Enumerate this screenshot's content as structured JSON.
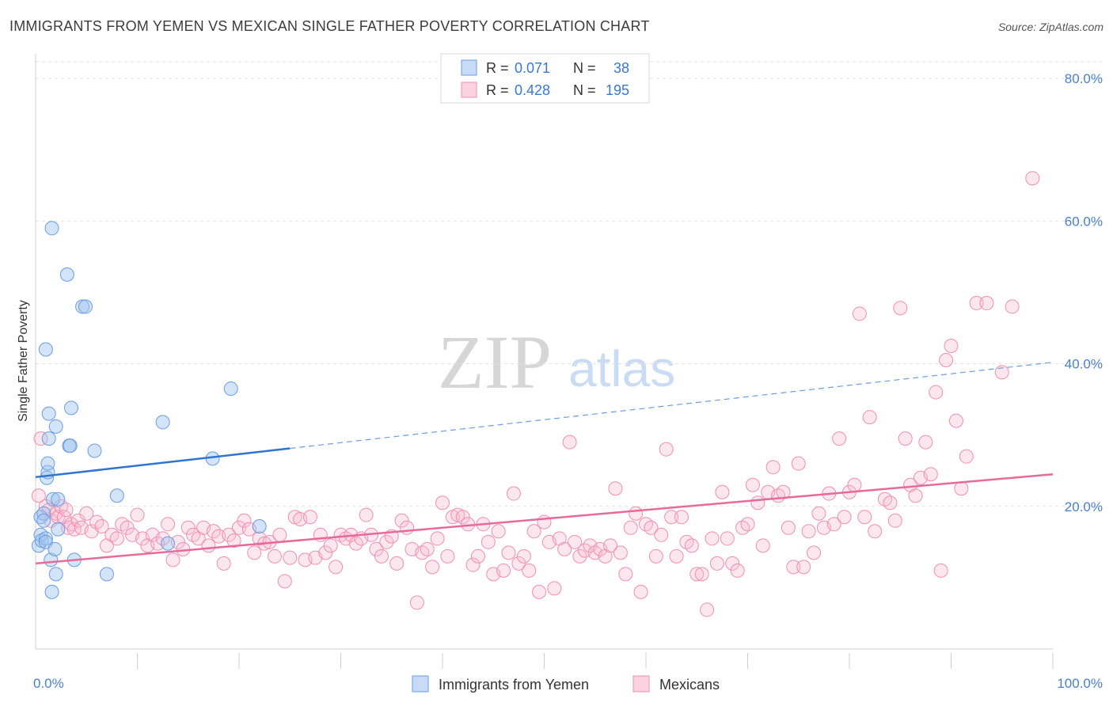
{
  "title": "IMMIGRANTS FROM YEMEN VS MEXICAN SINGLE FATHER POVERTY CORRELATION CHART",
  "source": "Source: ZipAtlas.com",
  "watermark": {
    "zip": "ZIP",
    "atlas": "atlas"
  },
  "legend": {
    "rows": [
      {
        "r_label": "R =",
        "r_value": "0.071",
        "n_label": "N =",
        "n_value": "38",
        "color": "#6b9de0"
      },
      {
        "r_label": "R =",
        "r_value": "0.428",
        "n_label": "N =",
        "n_value": "195",
        "color": "#f08fb0"
      }
    ]
  },
  "bottom_legend": [
    {
      "label": "Immigrants from Yemen",
      "color": "#6b9de0"
    },
    {
      "label": "Mexicans",
      "color": "#f08fb0"
    }
  ],
  "chart_data": {
    "type": "scatter",
    "xlabel": "",
    "ylabel": "Single Father Poverty",
    "xlim": [
      0,
      100
    ],
    "ylim": [
      0,
      83
    ],
    "x_tick_labels": [
      "0.0%",
      "100.0%"
    ],
    "y_ticks": [
      20,
      40,
      60,
      80
    ],
    "y_tick_labels": [
      "20.0%",
      "40.0%",
      "60.0%",
      "80.0%"
    ],
    "grid": "horizontal dashed",
    "series": [
      {
        "name": "Immigrants from Yemen",
        "color": "#6b9de0",
        "trend": {
          "x0": 0,
          "y0": 24.1,
          "x1": 100,
          "y1": 40.2,
          "solid_until": 25
        },
        "points": [
          [
            0.3,
            14.5
          ],
          [
            0.5,
            16.0
          ],
          [
            0.5,
            18.5
          ],
          [
            0.6,
            15.2
          ],
          [
            0.8,
            19.0
          ],
          [
            0.8,
            18.0
          ],
          [
            1.0,
            15.5
          ],
          [
            1.0,
            15.0
          ],
          [
            1.0,
            42.0
          ],
          [
            1.1,
            24.0
          ],
          [
            1.2,
            24.8
          ],
          [
            1.2,
            26.0
          ],
          [
            1.3,
            29.5
          ],
          [
            1.3,
            33.0
          ],
          [
            1.5,
            12.5
          ],
          [
            1.6,
            8.0
          ],
          [
            1.6,
            59.0
          ],
          [
            1.7,
            21.0
          ],
          [
            1.9,
            14.0
          ],
          [
            2.0,
            31.2
          ],
          [
            2.0,
            10.5
          ],
          [
            2.2,
            16.8
          ],
          [
            2.2,
            21.0
          ],
          [
            3.1,
            52.5
          ],
          [
            3.3,
            28.5
          ],
          [
            3.4,
            28.5
          ],
          [
            3.5,
            33.8
          ],
          [
            3.8,
            12.5
          ],
          [
            4.6,
            48.0
          ],
          [
            4.9,
            48.0
          ],
          [
            5.8,
            27.8
          ],
          [
            7.0,
            10.5
          ],
          [
            8.0,
            21.5
          ],
          [
            12.5,
            31.8
          ],
          [
            13.0,
            14.8
          ],
          [
            17.4,
            26.7
          ],
          [
            19.2,
            36.5
          ],
          [
            22.0,
            17.2
          ]
        ]
      },
      {
        "name": "Mexicans",
        "color": "#f08fb0",
        "trend": {
          "x0": 0,
          "y0": 12.0,
          "x1": 100,
          "y1": 24.5
        },
        "points": [
          [
            0.3,
            21.5
          ],
          [
            0.5,
            29.5
          ],
          [
            1.0,
            20.0
          ],
          [
            1.3,
            19.5
          ],
          [
            1.5,
            18.0
          ],
          [
            2.0,
            19.0
          ],
          [
            2.2,
            18.5
          ],
          [
            2.5,
            20.0
          ],
          [
            2.8,
            18.5
          ],
          [
            3.0,
            19.5
          ],
          [
            3.2,
            17.0
          ],
          [
            3.5,
            17.5
          ],
          [
            3.8,
            16.8
          ],
          [
            4.2,
            18.0
          ],
          [
            4.5,
            17.0
          ],
          [
            5.0,
            19.0
          ],
          [
            5.5,
            16.5
          ],
          [
            6.0,
            17.8
          ],
          [
            6.5,
            17.2
          ],
          [
            7.0,
            14.5
          ],
          [
            7.5,
            16.0
          ],
          [
            8.0,
            15.5
          ],
          [
            8.5,
            17.5
          ],
          [
            9.0,
            17.0
          ],
          [
            9.5,
            16.0
          ],
          [
            10.0,
            18.8
          ],
          [
            10.5,
            15.5
          ],
          [
            11.0,
            14.5
          ],
          [
            11.5,
            16.0
          ],
          [
            12.0,
            14.8
          ],
          [
            12.5,
            15.5
          ],
          [
            13.0,
            17.5
          ],
          [
            13.5,
            12.5
          ],
          [
            14.0,
            15.0
          ],
          [
            14.5,
            14.0
          ],
          [
            15.0,
            17.0
          ],
          [
            15.5,
            16.0
          ],
          [
            16.0,
            15.5
          ],
          [
            16.5,
            17.0
          ],
          [
            17.0,
            14.5
          ],
          [
            17.5,
            16.5
          ],
          [
            18.0,
            15.8
          ],
          [
            18.5,
            12.0
          ],
          [
            19.0,
            16.0
          ],
          [
            19.5,
            15.2
          ],
          [
            20.0,
            17.0
          ],
          [
            20.5,
            18.0
          ],
          [
            21.0,
            16.8
          ],
          [
            21.5,
            13.5
          ],
          [
            22.0,
            15.5
          ],
          [
            22.5,
            14.8
          ],
          [
            23.0,
            15.0
          ],
          [
            23.5,
            13.0
          ],
          [
            24.0,
            16.0
          ],
          [
            24.5,
            9.5
          ],
          [
            25.0,
            12.8
          ],
          [
            25.5,
            18.5
          ],
          [
            26.0,
            18.2
          ],
          [
            26.5,
            12.5
          ],
          [
            27.0,
            18.5
          ],
          [
            27.5,
            12.8
          ],
          [
            28.0,
            16.0
          ],
          [
            28.5,
            13.5
          ],
          [
            29.0,
            14.5
          ],
          [
            29.5,
            11.5
          ],
          [
            30.0,
            16.0
          ],
          [
            30.5,
            15.5
          ],
          [
            31.0,
            16.0
          ],
          [
            31.5,
            14.8
          ],
          [
            32.0,
            15.5
          ],
          [
            32.5,
            18.8
          ],
          [
            33.0,
            16.0
          ],
          [
            33.5,
            14.0
          ],
          [
            34.0,
            13.0
          ],
          [
            34.5,
            15.0
          ],
          [
            35.0,
            15.8
          ],
          [
            35.5,
            12.0
          ],
          [
            36.0,
            18.0
          ],
          [
            36.5,
            17.0
          ],
          [
            37.0,
            14.0
          ],
          [
            37.5,
            6.5
          ],
          [
            38.0,
            13.5
          ],
          [
            38.5,
            14.0
          ],
          [
            39.0,
            11.5
          ],
          [
            39.5,
            15.5
          ],
          [
            40.0,
            20.5
          ],
          [
            40.5,
            13.0
          ],
          [
            41.0,
            18.5
          ],
          [
            41.5,
            18.8
          ],
          [
            42.0,
            18.5
          ],
          [
            42.5,
            17.5
          ],
          [
            43.0,
            11.8
          ],
          [
            43.5,
            13.0
          ],
          [
            44.0,
            17.5
          ],
          [
            44.5,
            15.0
          ],
          [
            45.0,
            10.5
          ],
          [
            45.5,
            16.5
          ],
          [
            46.0,
            11.0
          ],
          [
            46.5,
            13.5
          ],
          [
            47.0,
            21.8
          ],
          [
            47.5,
            12.0
          ],
          [
            48.0,
            13.0
          ],
          [
            48.5,
            11.0
          ],
          [
            49.0,
            16.5
          ],
          [
            49.5,
            8.0
          ],
          [
            50.0,
            17.8
          ],
          [
            50.5,
            15.0
          ],
          [
            51.0,
            8.5
          ],
          [
            51.5,
            15.5
          ],
          [
            52.0,
            14.0
          ],
          [
            52.5,
            29.0
          ],
          [
            53.0,
            15.0
          ],
          [
            53.5,
            13.0
          ],
          [
            54.0,
            13.8
          ],
          [
            54.5,
            14.5
          ],
          [
            55.0,
            13.5
          ],
          [
            55.5,
            14.0
          ],
          [
            56.0,
            13.0
          ],
          [
            56.5,
            14.5
          ],
          [
            57.0,
            22.5
          ],
          [
            57.5,
            13.5
          ],
          [
            58.0,
            10.5
          ],
          [
            58.5,
            17.0
          ],
          [
            59.0,
            19.0
          ],
          [
            59.5,
            8.0
          ],
          [
            60.0,
            17.5
          ],
          [
            60.5,
            17.0
          ],
          [
            61.0,
            13.0
          ],
          [
            61.5,
            16.0
          ],
          [
            62.0,
            28.0
          ],
          [
            62.5,
            18.5
          ],
          [
            63.0,
            13.0
          ],
          [
            63.5,
            18.5
          ],
          [
            64.0,
            15.0
          ],
          [
            64.5,
            14.5
          ],
          [
            65.0,
            10.5
          ],
          [
            65.5,
            10.5
          ],
          [
            66.0,
            5.5
          ],
          [
            66.5,
            15.5
          ],
          [
            67.0,
            12.0
          ],
          [
            67.5,
            22.0
          ],
          [
            68.0,
            15.5
          ],
          [
            68.5,
            12.0
          ],
          [
            69.0,
            11.0
          ],
          [
            69.5,
            17.0
          ],
          [
            70.0,
            17.5
          ],
          [
            70.5,
            23.0
          ],
          [
            71.0,
            20.5
          ],
          [
            71.5,
            14.5
          ],
          [
            72.0,
            22.0
          ],
          [
            72.5,
            25.5
          ],
          [
            73.0,
            21.5
          ],
          [
            73.5,
            22.0
          ],
          [
            74.0,
            17.0
          ],
          [
            74.5,
            11.5
          ],
          [
            75.0,
            26.0
          ],
          [
            75.5,
            11.5
          ],
          [
            76.0,
            16.5
          ],
          [
            76.5,
            13.5
          ],
          [
            77.0,
            19.0
          ],
          [
            77.5,
            17.0
          ],
          [
            78.0,
            21.8
          ],
          [
            78.5,
            17.5
          ],
          [
            79.0,
            29.5
          ],
          [
            79.5,
            18.5
          ],
          [
            80.0,
            22.0
          ],
          [
            80.5,
            23.0
          ],
          [
            81.0,
            47.0
          ],
          [
            81.5,
            18.5
          ],
          [
            82.0,
            32.5
          ],
          [
            82.5,
            16.5
          ],
          [
            83.5,
            21.0
          ],
          [
            84.0,
            20.5
          ],
          [
            84.5,
            18.0
          ],
          [
            85.0,
            47.8
          ],
          [
            85.5,
            29.5
          ],
          [
            86.0,
            23.0
          ],
          [
            86.5,
            21.5
          ],
          [
            87.0,
            24.0
          ],
          [
            87.5,
            29.0
          ],
          [
            88.0,
            24.5
          ],
          [
            88.5,
            36.0
          ],
          [
            89.0,
            11.0
          ],
          [
            89.5,
            40.5
          ],
          [
            90.0,
            42.5
          ],
          [
            90.5,
            32.0
          ],
          [
            91.0,
            22.5
          ],
          [
            91.5,
            27.0
          ],
          [
            92.5,
            48.5
          ],
          [
            93.5,
            48.5
          ],
          [
            95.0,
            38.8
          ],
          [
            96.0,
            48.0
          ],
          [
            98.0,
            66.0
          ]
        ]
      }
    ]
  }
}
